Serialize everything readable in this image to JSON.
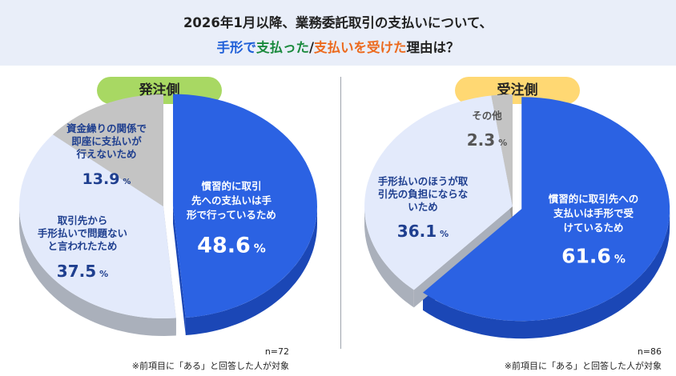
{
  "title": {
    "line1": "2026年1月以降、業務委託取引の支払いについて、",
    "line2_parts": [
      {
        "text": "手形で",
        "color": "blue"
      },
      {
        "text": "支払った",
        "color": "green"
      },
      {
        "text": "/",
        "color": "dark"
      },
      {
        "text": "支払いを受けた",
        "color": "orange"
      },
      {
        "text": "理由は？",
        "color": "dark"
      }
    ]
  },
  "colors": {
    "main_slice": "#2b62e3",
    "main_side": "#1b47b6",
    "light_slice": "#e3eafb",
    "light_side": "#aab0bb",
    "gray_slice": "#c4c4c4",
    "gray_side": "#9a9a9a",
    "label_dark_blue": "#1f3f8f",
    "label_gray": "#555555",
    "left_pill": "#a8d863",
    "right_pill": "#ffd873"
  },
  "left": {
    "pill_label": "発注側",
    "n_label": "n=72",
    "footnote": "※前項目に「ある」と回答した人が対象"
  },
  "right": {
    "pill_label": "受注側",
    "n_label": "n=86",
    "footnote": "※前項目に「ある」と回答した人が対象"
  },
  "chart_data": [
    {
      "type": "pie",
      "title": "発注側",
      "slices": [
        {
          "label": "慣習的に取引先への支払いは手形で行っているため",
          "value": 48.6,
          "style": "main"
        },
        {
          "label": "取引先から手形払いで問題ないと言われたため",
          "value": 37.5,
          "style": "light"
        },
        {
          "label": "資金繰りの関係で即座に支払いが行えないため",
          "value": 13.9,
          "style": "gray"
        }
      ],
      "unit": "%",
      "n": 72
    },
    {
      "type": "pie",
      "title": "受注側",
      "slices": [
        {
          "label": "慣習的に取引先への支払いは手形で受けているため",
          "value": 61.6,
          "style": "main"
        },
        {
          "label": "手形払いのほうが取引先の負担にならないため",
          "value": 36.1,
          "style": "light"
        },
        {
          "label": "その他",
          "value": 2.3,
          "style": "gray"
        }
      ],
      "unit": "%",
      "n": 86
    }
  ]
}
